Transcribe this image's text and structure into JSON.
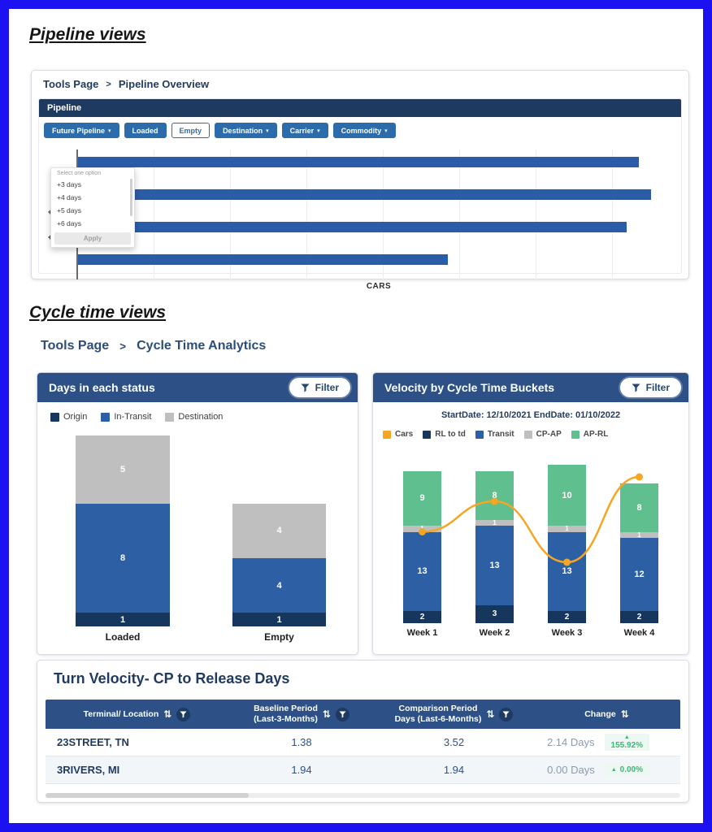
{
  "colors": {
    "frame": "#1c12f1",
    "navy": "#1f3a5f",
    "header_blue": "#2d5186",
    "btn_blue": "#2d6cab",
    "bar_blue": "#2a5ca8",
    "transit_blue": "#2d5fa4",
    "dark_seg": "#17365d",
    "gray_seg": "#bfbfbf",
    "green": "#5fbf8e",
    "orange": "#f5a623",
    "positive_green": "#3cb878"
  },
  "icons": {
    "caret_down": "▾",
    "sort": "⇅",
    "up_triangle": "▲",
    "filter": "funnel"
  },
  "sections": {
    "pipeline_title": "Pipeline views",
    "cycle_title": "Cycle time views"
  },
  "pipeline": {
    "breadcrumb": {
      "root": "Tools Page",
      "separator": ">",
      "current": "Pipeline Overview"
    },
    "panel_title": "Pipeline",
    "filters": {
      "future_pipeline": "Future Pipeline",
      "loaded": "Loaded",
      "empty": "Empty",
      "destination": "Destination",
      "carrier": "Carrier",
      "commodity": "Commodity"
    },
    "dropdown": {
      "placeholder": "Select one option",
      "options": [
        "+3 days",
        "+4 days",
        "+5 days",
        "+6 days"
      ],
      "apply": "Apply"
    },
    "chart_data": {
      "type": "bar",
      "orientation": "horizontal",
      "categories": [
        "",
        "",
        "+2 Day",
        "+3 Day"
      ],
      "values": [
        94,
        96,
        92,
        62
      ],
      "xlim": [
        0,
        100
      ],
      "xlabel": "CARS"
    }
  },
  "cycle": {
    "breadcrumb": {
      "root": "Tools Page",
      "separator": ">",
      "current": "Cycle Time Analytics"
    },
    "days_in_status": {
      "title": "Days in each status",
      "filter_label": "Filter",
      "legend": [
        {
          "label": "Origin"
        },
        {
          "label": "In-Transit"
        },
        {
          "label": "Destination"
        }
      ],
      "chart_data": {
        "type": "stacked-bar",
        "categories": [
          "Loaded",
          "Empty"
        ],
        "series": [
          {
            "name": "Origin",
            "values": [
              1,
              1
            ]
          },
          {
            "name": "In-Transit",
            "values": [
              8,
              4
            ]
          },
          {
            "name": "Destination",
            "values": [
              5,
              4
            ]
          }
        ]
      }
    },
    "velocity": {
      "title": "Velocity by Cycle Time Buckets",
      "filter_label": "Filter",
      "date_range": "StartDate: 12/10/2021 EndDate: 01/10/2022",
      "legend": [
        {
          "label": "Cars"
        },
        {
          "label": "RL to td"
        },
        {
          "label": "Transit"
        },
        {
          "label": "CP-AP"
        },
        {
          "label": "AP-RL"
        }
      ],
      "chart_data": {
        "type": "stacked-bar-with-line",
        "categories": [
          "Week 1",
          "Week 2",
          "Week 3",
          "Week 4"
        ],
        "series": [
          {
            "name": "RL to td",
            "values": [
              2,
              3,
              2,
              2
            ]
          },
          {
            "name": "Transit",
            "values": [
              13,
              13,
              13,
              12
            ]
          },
          {
            "name": "CP-AP",
            "values": [
              1,
              1,
              1,
              1
            ]
          },
          {
            "name": "AP-RL",
            "values": [
              9,
              8,
              10,
              8
            ]
          }
        ],
        "line": {
          "name": "Cars",
          "values": [
            15,
            20,
            10,
            24
          ]
        }
      }
    }
  },
  "turn_velocity": {
    "title": "Turn Velocity- CP to Release Days",
    "columns": [
      {
        "line1": "Terminal/ Location",
        "line2": ""
      },
      {
        "line1": "Baseline Period",
        "line2": "(Last-3-Months)"
      },
      {
        "line1": "Comparison Period",
        "line2": "Days (Last-6-Months)"
      },
      {
        "line1": "Change",
        "line2": ""
      }
    ],
    "rows": [
      {
        "terminal": "23STREET, TN",
        "baseline": "1.38",
        "comparison": "3.52",
        "change_days": "2.14 Days",
        "change_pct": "155.92%"
      },
      {
        "terminal": "3RIVERS, MI",
        "baseline": "1.94",
        "comparison": "1.94",
        "change_days": "0.00 Days",
        "change_pct": "0.00%"
      }
    ]
  }
}
